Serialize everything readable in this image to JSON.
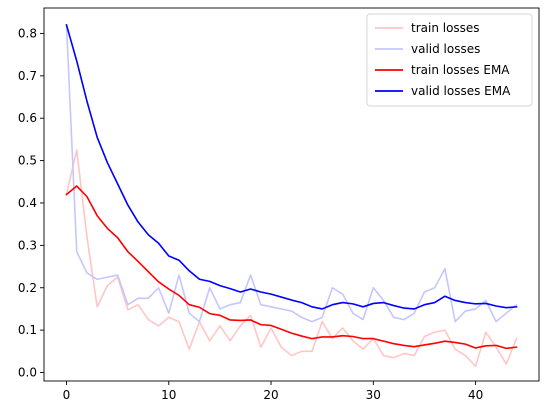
{
  "chart_data": {
    "type": "line",
    "title": "",
    "xlabel": "",
    "ylabel": "",
    "xlim": [
      -2.2,
      46.2
    ],
    "ylim": [
      -0.02,
      0.86
    ],
    "xticks": [
      0,
      10,
      20,
      30,
      40
    ],
    "xtick_labels": [
      "0",
      "10",
      "20",
      "30",
      "40"
    ],
    "yticks": [
      0.0,
      0.1,
      0.2,
      0.3,
      0.4,
      0.5,
      0.6,
      0.7,
      0.8
    ],
    "ytick_labels": [
      "0.0",
      "0.1",
      "0.2",
      "0.3",
      "0.4",
      "0.5",
      "0.6",
      "0.7",
      "0.8"
    ],
    "grid": false,
    "legend_position": "top-right",
    "x": [
      0,
      1,
      2,
      3,
      4,
      5,
      6,
      7,
      8,
      9,
      10,
      11,
      12,
      13,
      14,
      15,
      16,
      17,
      18,
      19,
      20,
      21,
      22,
      23,
      24,
      25,
      26,
      27,
      28,
      29,
      30,
      31,
      32,
      33,
      34,
      35,
      36,
      37,
      38,
      39,
      40,
      41,
      42,
      43,
      44
    ],
    "series": [
      {
        "name": "train losses",
        "color": "#ffc6c6",
        "values": [
          0.42,
          0.525,
          0.32,
          0.155,
          0.205,
          0.225,
          0.148,
          0.16,
          0.125,
          0.11,
          0.13,
          0.12,
          0.055,
          0.12,
          0.075,
          0.11,
          0.075,
          0.11,
          0.135,
          0.06,
          0.105,
          0.06,
          0.04,
          0.05,
          0.05,
          0.12,
          0.08,
          0.105,
          0.075,
          0.055,
          0.08,
          0.04,
          0.035,
          0.045,
          0.04,
          0.085,
          0.095,
          0.1,
          0.055,
          0.04,
          0.015,
          0.095,
          0.06,
          0.02,
          0.08
        ]
      },
      {
        "name": "valid losses",
        "color": "#c6c6ff",
        "values": [
          0.82,
          0.285,
          0.235,
          0.22,
          0.225,
          0.23,
          0.16,
          0.175,
          0.175,
          0.2,
          0.14,
          0.23,
          0.14,
          0.12,
          0.2,
          0.15,
          0.16,
          0.165,
          0.23,
          0.16,
          0.155,
          0.15,
          0.145,
          0.13,
          0.12,
          0.13,
          0.2,
          0.185,
          0.14,
          0.125,
          0.2,
          0.17,
          0.13,
          0.125,
          0.14,
          0.19,
          0.2,
          0.245,
          0.12,
          0.145,
          0.15,
          0.17,
          0.12,
          0.14,
          0.16
        ]
      },
      {
        "name": "train losses EMA",
        "color": "#ff0000",
        "values": [
          0.42,
          0.44,
          0.415,
          0.37,
          0.34,
          0.318,
          0.285,
          0.262,
          0.238,
          0.214,
          0.197,
          0.182,
          0.16,
          0.154,
          0.139,
          0.135,
          0.124,
          0.123,
          0.124,
          0.113,
          0.111,
          0.102,
          0.093,
          0.086,
          0.08,
          0.084,
          0.084,
          0.087,
          0.085,
          0.08,
          0.08,
          0.074,
          0.068,
          0.064,
          0.061,
          0.065,
          0.069,
          0.074,
          0.071,
          0.067,
          0.058,
          0.063,
          0.064,
          0.057,
          0.06
        ]
      },
      {
        "name": "valid losses EMA",
        "color": "#0000ff",
        "values": [
          0.82,
          0.735,
          0.64,
          0.555,
          0.495,
          0.445,
          0.395,
          0.355,
          0.325,
          0.305,
          0.275,
          0.265,
          0.24,
          0.22,
          0.215,
          0.205,
          0.198,
          0.19,
          0.197,
          0.19,
          0.185,
          0.178,
          0.171,
          0.165,
          0.155,
          0.15,
          0.16,
          0.165,
          0.162,
          0.155,
          0.163,
          0.165,
          0.158,
          0.152,
          0.15,
          0.16,
          0.165,
          0.18,
          0.17,
          0.165,
          0.162,
          0.163,
          0.157,
          0.153,
          0.155
        ]
      }
    ]
  }
}
